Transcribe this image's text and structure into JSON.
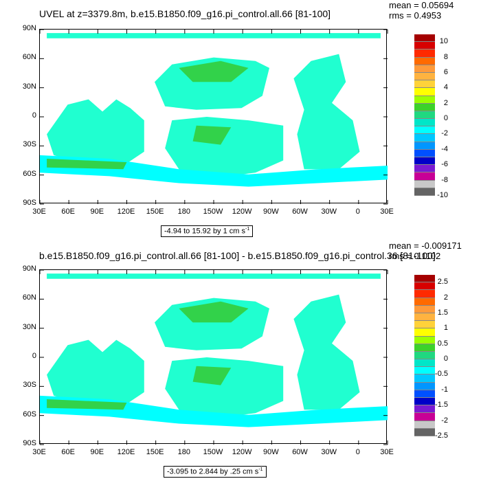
{
  "panels": [
    {
      "title": "UVEL at z=3379.8m, b.e15.B1850.f09_g16.pi_control.all.66 [81-100]",
      "mean": "mean = 0.05694",
      "rms": "rms = 0.4953",
      "range": "-4.94 to 15.92 by 1 cm s",
      "range_unit": "-1",
      "colorbar_labels": [
        "10",
        "8",
        "6",
        "4",
        "2",
        "0",
        "-2",
        "-4",
        "-6",
        "-8",
        "-10"
      ]
    },
    {
      "title": "b.e15.B1850.f09_g16.pi_control.all.66 [81-100] - b.e15.B1850.f09_g16.pi_control.36 [81-100]",
      "mean": "mean = -0.009171",
      "rms": "rms = 0.1102",
      "range": "-3.095 to 2.844 by .25 cm s",
      "range_unit": "-1",
      "colorbar_labels": [
        "2.5",
        "2",
        "1.5",
        "1",
        "0.5",
        "0",
        "-0.5",
        "-1",
        "-1.5",
        "-2",
        "-2.5"
      ]
    }
  ],
  "axes": {
    "lat_labels": [
      "90N",
      "60N",
      "30N",
      "0",
      "30S",
      "60S",
      "90S"
    ],
    "lon_labels": [
      "30E",
      "60E",
      "90E",
      "120E",
      "150E",
      "180",
      "150W",
      "120W",
      "90W",
      "60W",
      "30W",
      "0",
      "30E"
    ]
  },
  "chart_data": [
    {
      "type": "heatmap",
      "title": "UVEL at z=3379.8m, b.e15.B1850.f09_g16.pi_control.all.66 [81-100]",
      "xlabel": "",
      "ylabel": "",
      "xlim": [
        "30E",
        "30E"
      ],
      "ylim": [
        "90S",
        "90N"
      ],
      "contour_levels": [
        -10,
        -9,
        -8,
        -7,
        -6,
        -5,
        -4,
        -3,
        -2,
        -1,
        0,
        1,
        2,
        3,
        4,
        5,
        6,
        7,
        8,
        9,
        10
      ],
      "colorbar_ticks": [
        10,
        8,
        6,
        4,
        2,
        0,
        -2,
        -4,
        -6,
        -8,
        -10
      ],
      "min": -4.94,
      "max": 15.92,
      "interval": 1,
      "units": "cm s^-1",
      "mean": 0.05694,
      "rms": 0.4953
    },
    {
      "type": "heatmap",
      "title": "b.e15.B1850.f09_g16.pi_control.all.66 [81-100] - b.e15.B1850.f09_g16.pi_control.36 [81-100]",
      "xlabel": "",
      "ylabel": "",
      "xlim": [
        "30E",
        "30E"
      ],
      "ylim": [
        "90S",
        "90N"
      ],
      "contour_levels": [
        -2.5,
        -2.25,
        -2,
        -1.75,
        -1.5,
        -1.25,
        -1,
        -0.75,
        -0.5,
        -0.25,
        0,
        0.25,
        0.5,
        0.75,
        1,
        1.25,
        1.5,
        1.75,
        2,
        2.25,
        2.5
      ],
      "colorbar_ticks": [
        2.5,
        2,
        1.5,
        1,
        0.5,
        0,
        -0.5,
        -1,
        -1.5,
        -2,
        -2.5
      ],
      "min": -3.095,
      "max": 2.844,
      "interval": 0.25,
      "units": "cm s^-1",
      "mean": -0.009171,
      "rms": 0.1102
    }
  ],
  "colors": {
    "palette": [
      "#a50000",
      "#d70000",
      "#ff2a00",
      "#ff6a00",
      "#ff9a3a",
      "#ffb340",
      "#ffd23a",
      "#ffff00",
      "#9cff00",
      "#3cd22a",
      "#20d880",
      "#00e6c8",
      "#00ffff",
      "#00c8ff",
      "#0096ff",
      "#0050ff",
      "#0000c8",
      "#7a1ad2",
      "#c80096",
      "#c8c8c8",
      "#646464"
    ],
    "ocean_main": "#20ffd0",
    "ocean_cyan": "#00ffff",
    "ocean_green": "#32d24a",
    "ocean_yellowgreen": "#9cff00"
  }
}
